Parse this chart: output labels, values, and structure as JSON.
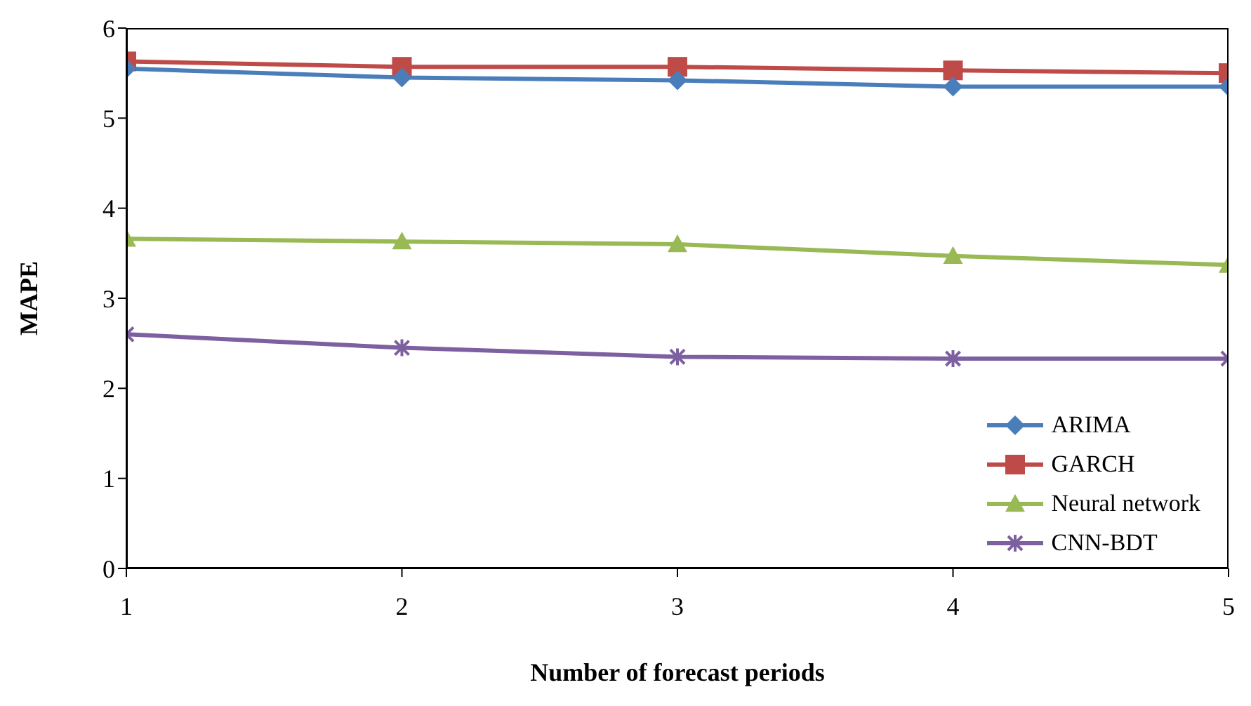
{
  "chart_data": {
    "type": "line",
    "xlabel": "Number of forecast periods",
    "ylabel": "MAPE",
    "x": [
      1,
      2,
      3,
      4,
      5
    ],
    "xlim": [
      1,
      5
    ],
    "xticks": [
      1,
      2,
      3,
      4,
      5
    ],
    "ylim": [
      0,
      6
    ],
    "yticks": [
      0,
      1,
      2,
      3,
      4,
      5,
      6
    ],
    "grid": false,
    "legend": "bottom right",
    "series": [
      {
        "name": "ARIMA",
        "color": "#4a7ebb",
        "marker": "diamond",
        "values": [
          5.55,
          5.45,
          5.42,
          5.35,
          5.35
        ]
      },
      {
        "name": "GARCH",
        "color": "#be4b48",
        "marker": "square",
        "values": [
          5.63,
          5.57,
          5.57,
          5.53,
          5.5
        ]
      },
      {
        "name": "Neural network",
        "color": "#98b954",
        "marker": "triangle",
        "values": [
          3.66,
          3.63,
          3.6,
          3.47,
          3.37
        ]
      },
      {
        "name": "CNN-BDT",
        "color": "#7d60a0",
        "marker": "cross",
        "values": [
          2.6,
          2.45,
          2.35,
          2.33,
          2.33
        ]
      }
    ]
  }
}
